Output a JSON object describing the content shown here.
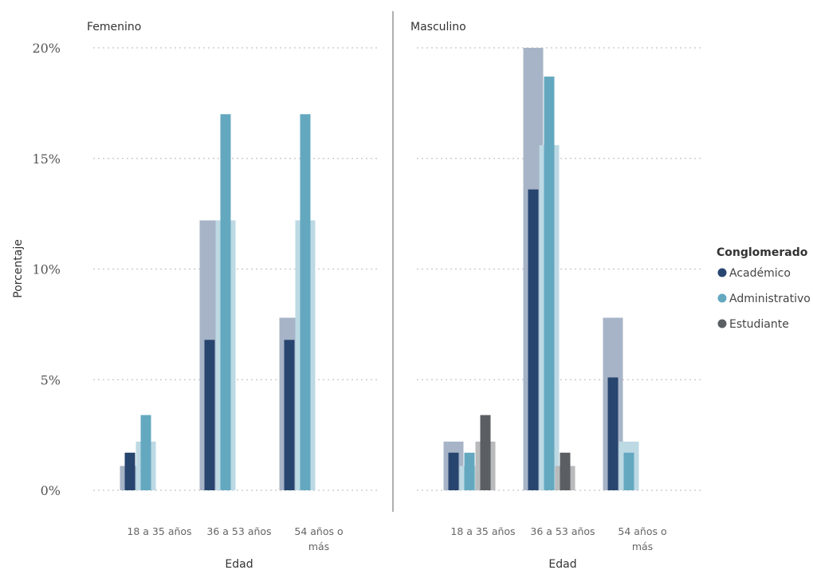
{
  "chart_data": {
    "type": "bar",
    "ylabel": "Porcentaje",
    "xlabel": "Edad",
    "ylim": [
      0,
      20
    ],
    "yticks": [
      "0%",
      "5%",
      "10%",
      "15%",
      "20%"
    ],
    "ytick_values": [
      0,
      5,
      10,
      15,
      20
    ],
    "grid": true,
    "categories": [
      {
        "line1": "18 a 35 años",
        "line2": ""
      },
      {
        "line1": "36 a 53 años",
        "line2": ""
      },
      {
        "line1": "54 años o",
        "line2": "más"
      }
    ],
    "legend": {
      "title": "Conglomerado",
      "placement": "right",
      "items": [
        {
          "name": "Académico",
          "color": "#27456f"
        },
        {
          "name": "Administrativo",
          "color": "#64a8c0"
        },
        {
          "name": "Estudiante",
          "color": "#5b5f63"
        }
      ]
    },
    "background_colors": {
      "Académico": "#a7b4c7",
      "Administrativo": "#bcd9e4",
      "Estudiante": "#b9babb"
    },
    "panels": [
      {
        "title": "Femenino",
        "series": [
          {
            "name": "Académico",
            "values": [
              1.7,
              6.8,
              6.8
            ],
            "background": [
              1.1,
              12.2,
              7.8
            ]
          },
          {
            "name": "Administrativo",
            "values": [
              3.4,
              17.0,
              17.0
            ],
            "background": [
              2.2,
              12.2,
              12.2
            ]
          },
          {
            "name": "Estudiante",
            "values": [
              null,
              null,
              null
            ],
            "background": [
              null,
              null,
              null
            ]
          }
        ]
      },
      {
        "title": "Masculino",
        "series": [
          {
            "name": "Académico",
            "values": [
              1.7,
              13.6,
              5.1
            ],
            "background": [
              2.2,
              20.0,
              7.8
            ]
          },
          {
            "name": "Administrativo",
            "values": [
              1.7,
              18.7,
              1.7
            ],
            "background": [
              1.1,
              15.6,
              2.2
            ]
          },
          {
            "name": "Estudiante",
            "values": [
              3.4,
              1.7,
              null
            ],
            "background": [
              2.2,
              1.1,
              null
            ]
          }
        ]
      }
    ]
  }
}
